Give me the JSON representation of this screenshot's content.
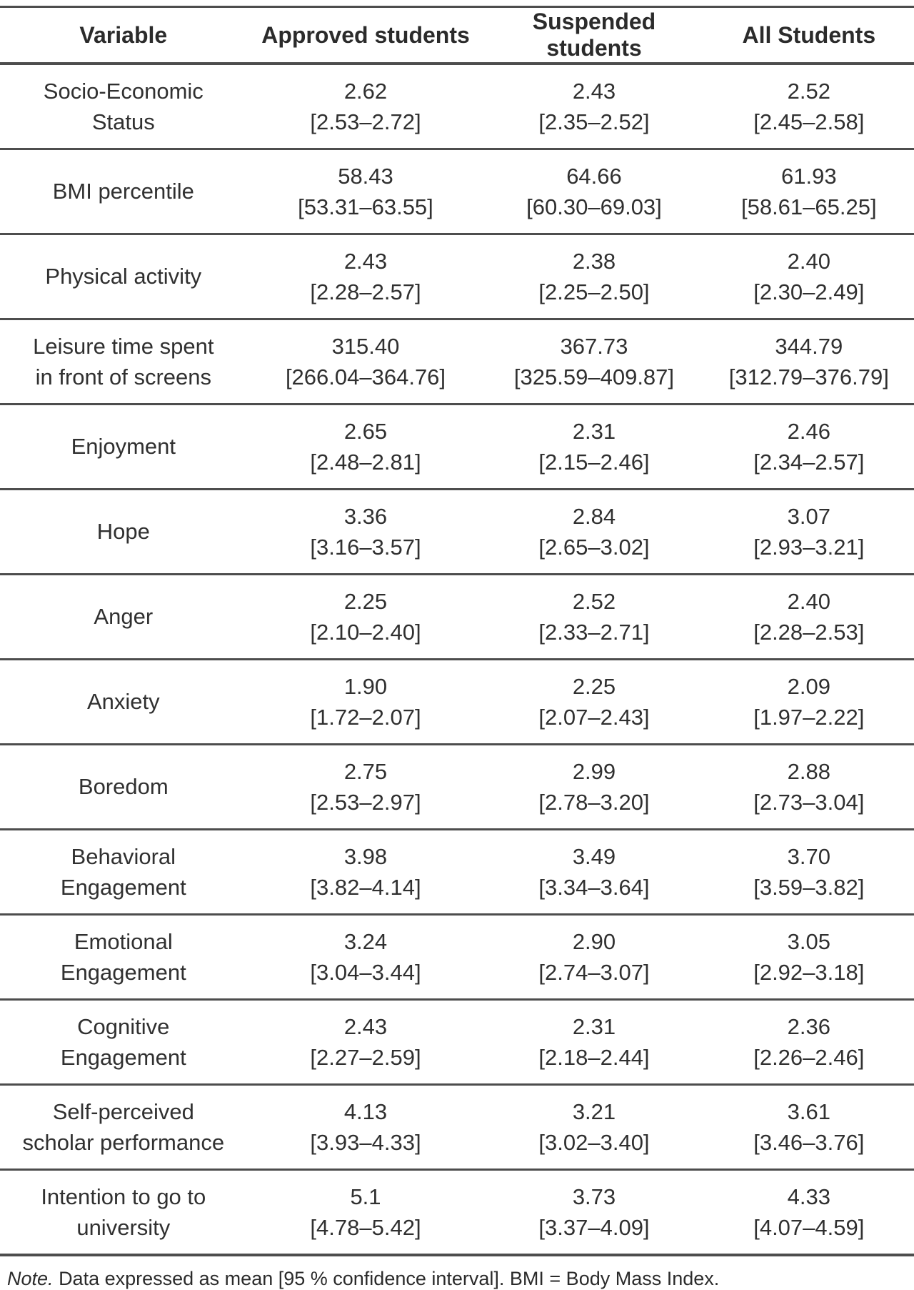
{
  "table": {
    "columns": [
      "Variable",
      "Approved students",
      "Suspended students",
      "All Students"
    ],
    "rows": [
      {
        "variable": "Socio-Economic\nStatus",
        "approved_mean": "2.62",
        "approved_ci": "[2.53–2.72]",
        "suspended_mean": "2.43",
        "suspended_ci": "[2.35–2.52]",
        "all_mean": "2.52",
        "all_ci": "[2.45–2.58]"
      },
      {
        "variable": "BMI percentile",
        "approved_mean": "58.43",
        "approved_ci": "[53.31–63.55]",
        "suspended_mean": "64.66",
        "suspended_ci": "[60.30–69.03]",
        "all_mean": "61.93",
        "all_ci": "[58.61–65.25]"
      },
      {
        "variable": "Physical activity",
        "approved_mean": "2.43",
        "approved_ci": "[2.28–2.57]",
        "suspended_mean": "2.38",
        "suspended_ci": "[2.25–2.50]",
        "all_mean": "2.40",
        "all_ci": "[2.30–2.49]"
      },
      {
        "variable": "Leisure time spent\nin front of screens",
        "approved_mean": "315.40",
        "approved_ci": "[266.04–364.76]",
        "suspended_mean": "367.73",
        "suspended_ci": "[325.59–409.87]",
        "all_mean": "344.79",
        "all_ci": "[312.79–376.79]"
      },
      {
        "variable": "Enjoyment",
        "approved_mean": "2.65",
        "approved_ci": "[2.48–2.81]",
        "suspended_mean": "2.31",
        "suspended_ci": "[2.15–2.46]",
        "all_mean": "2.46",
        "all_ci": "[2.34–2.57]"
      },
      {
        "variable": "Hope",
        "approved_mean": "3.36",
        "approved_ci": "[3.16–3.57]",
        "suspended_mean": "2.84",
        "suspended_ci": "[2.65–3.02]",
        "all_mean": "3.07",
        "all_ci": "[2.93–3.21]"
      },
      {
        "variable": "Anger",
        "approved_mean": "2.25",
        "approved_ci": "[2.10–2.40]",
        "suspended_mean": "2.52",
        "suspended_ci": "[2.33–2.71]",
        "all_mean": "2.40",
        "all_ci": "[2.28–2.53]"
      },
      {
        "variable": "Anxiety",
        "approved_mean": "1.90",
        "approved_ci": "[1.72–2.07]",
        "suspended_mean": "2.25",
        "suspended_ci": "[2.07–2.43]",
        "all_mean": "2.09",
        "all_ci": "[1.97–2.22]"
      },
      {
        "variable": "Boredom",
        "approved_mean": "2.75",
        "approved_ci": "[2.53–2.97]",
        "suspended_mean": "2.99",
        "suspended_ci": "[2.78–3.20]",
        "all_mean": "2.88",
        "all_ci": "[2.73–3.04]"
      },
      {
        "variable": "Behavioral\nEngagement",
        "approved_mean": "3.98",
        "approved_ci": "[3.82–4.14]",
        "suspended_mean": "3.49",
        "suspended_ci": "[3.34–3.64]",
        "all_mean": "3.70",
        "all_ci": "[3.59–3.82]"
      },
      {
        "variable": "Emotional\nEngagement",
        "approved_mean": "3.24",
        "approved_ci": "[3.04–3.44]",
        "suspended_mean": "2.90",
        "suspended_ci": "[2.74–3.07]",
        "all_mean": "3.05",
        "all_ci": "[2.92–3.18]"
      },
      {
        "variable": "Cognitive\nEngagement",
        "approved_mean": "2.43",
        "approved_ci": "[2.27–2.59]",
        "suspended_mean": "2.31",
        "suspended_ci": "[2.18–2.44]",
        "all_mean": "2.36",
        "all_ci": "[2.26–2.46]"
      },
      {
        "variable": "Self-perceived\nscholar performance",
        "approved_mean": "4.13",
        "approved_ci": "[3.93–4.33]",
        "suspended_mean": "3.21",
        "suspended_ci": "[3.02–3.40]",
        "all_mean": "3.61",
        "all_ci": "[3.46–3.76]"
      },
      {
        "variable": "Intention to go to\nuniversity",
        "approved_mean": "5.1",
        "approved_ci": "[4.78–5.42]",
        "suspended_mean": "3.73",
        "suspended_ci": "[3.37–4.09]",
        "all_mean": "4.33",
        "all_ci": "[4.07–4.59]"
      }
    ],
    "note": {
      "prefix": "Note.",
      "text": "Data expressed as mean [95 % confidence interval]. BMI = Body Mass Index."
    }
  },
  "chart_data": {
    "type": "table",
    "title": "Descriptive statistics: mean [95 % CI] by student group",
    "categories": [
      "Socio-Economic Status",
      "BMI percentile",
      "Physical activity",
      "Leisure time spent in front of screens",
      "Enjoyment",
      "Hope",
      "Anger",
      "Anxiety",
      "Boredom",
      "Behavioral Engagement",
      "Emotional Engagement",
      "Cognitive Engagement",
      "Self-perceived scholar performance",
      "Intention to go to university"
    ],
    "series": [
      {
        "name": "Approved students",
        "values": [
          2.62,
          58.43,
          2.43,
          315.4,
          2.65,
          3.36,
          2.25,
          1.9,
          2.75,
          3.98,
          3.24,
          2.43,
          4.13,
          5.1
        ],
        "ci_low": [
          2.53,
          53.31,
          2.28,
          266.04,
          2.48,
          3.16,
          2.1,
          1.72,
          2.53,
          3.82,
          3.04,
          2.27,
          3.93,
          4.78
        ],
        "ci_high": [
          2.72,
          63.55,
          2.57,
          364.76,
          2.81,
          3.57,
          2.4,
          2.07,
          2.97,
          4.14,
          3.44,
          2.59,
          4.33,
          5.42
        ]
      },
      {
        "name": "Suspended students",
        "values": [
          2.43,
          64.66,
          2.38,
          367.73,
          2.31,
          2.84,
          2.52,
          2.25,
          2.99,
          3.49,
          2.9,
          2.31,
          3.21,
          3.73
        ],
        "ci_low": [
          2.35,
          60.3,
          2.25,
          325.59,
          2.15,
          2.65,
          2.33,
          2.07,
          2.78,
          3.34,
          2.74,
          2.18,
          3.02,
          3.37
        ],
        "ci_high": [
          2.52,
          69.03,
          2.5,
          409.87,
          2.46,
          3.02,
          2.71,
          2.43,
          3.2,
          3.64,
          3.07,
          2.44,
          3.4,
          4.09
        ]
      },
      {
        "name": "All Students",
        "values": [
          2.52,
          61.93,
          2.4,
          344.79,
          2.46,
          3.07,
          2.4,
          2.09,
          2.88,
          3.7,
          3.05,
          2.36,
          3.61,
          4.33
        ],
        "ci_low": [
          2.45,
          58.61,
          2.3,
          312.79,
          2.34,
          2.93,
          2.28,
          1.97,
          2.73,
          3.59,
          2.92,
          2.26,
          3.46,
          4.07
        ],
        "ci_high": [
          2.58,
          65.25,
          2.49,
          376.79,
          2.57,
          3.21,
          2.53,
          2.22,
          3.04,
          3.82,
          3.18,
          2.46,
          3.76,
          4.59
        ]
      }
    ]
  }
}
